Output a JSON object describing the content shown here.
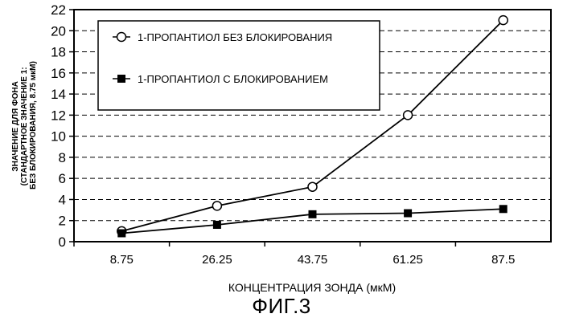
{
  "chart_data": {
    "type": "line",
    "categories": [
      "8.75",
      "26.25",
      "43.75",
      "61.25",
      "87.5"
    ],
    "series": [
      {
        "name": "1-ПРОПАНТИОЛ БЕЗ БЛОКИРОВАНИЯ",
        "marker": "open-circle",
        "values": [
          1.0,
          3.4,
          5.2,
          12.0,
          21.0
        ]
      },
      {
        "name": "1-ПРОПАНТИОЛ С БЛОКИРОВАНИЕМ",
        "marker": "filled-square",
        "values": [
          0.8,
          1.6,
          2.6,
          2.7,
          3.1
        ]
      }
    ],
    "yticks": [
      "0",
      "2",
      "4",
      "6",
      "8",
      "10",
      "12",
      "14",
      "16",
      "18",
      "20",
      "22"
    ],
    "ylim": [
      0,
      22
    ],
    "xlabel": "КОНЦЕНТРАЦИЯ ЗОНДА (мкМ)",
    "ylabel_lines": [
      "ЗНАЧЕНИЕ ДЛЯ ФОНА",
      "(СТАНДАРТНОЕ ЗНАЧЕНИЕ 1:",
      "БЕЗ БЛОКИРОВАНИЯ, 8.75 мкМ)"
    ],
    "grid": "horizontal-dashed",
    "legend_position": "top-left",
    "caption": "ФИГ.3",
    "colors": {
      "line": "#000000",
      "background": "#ffffff"
    }
  }
}
